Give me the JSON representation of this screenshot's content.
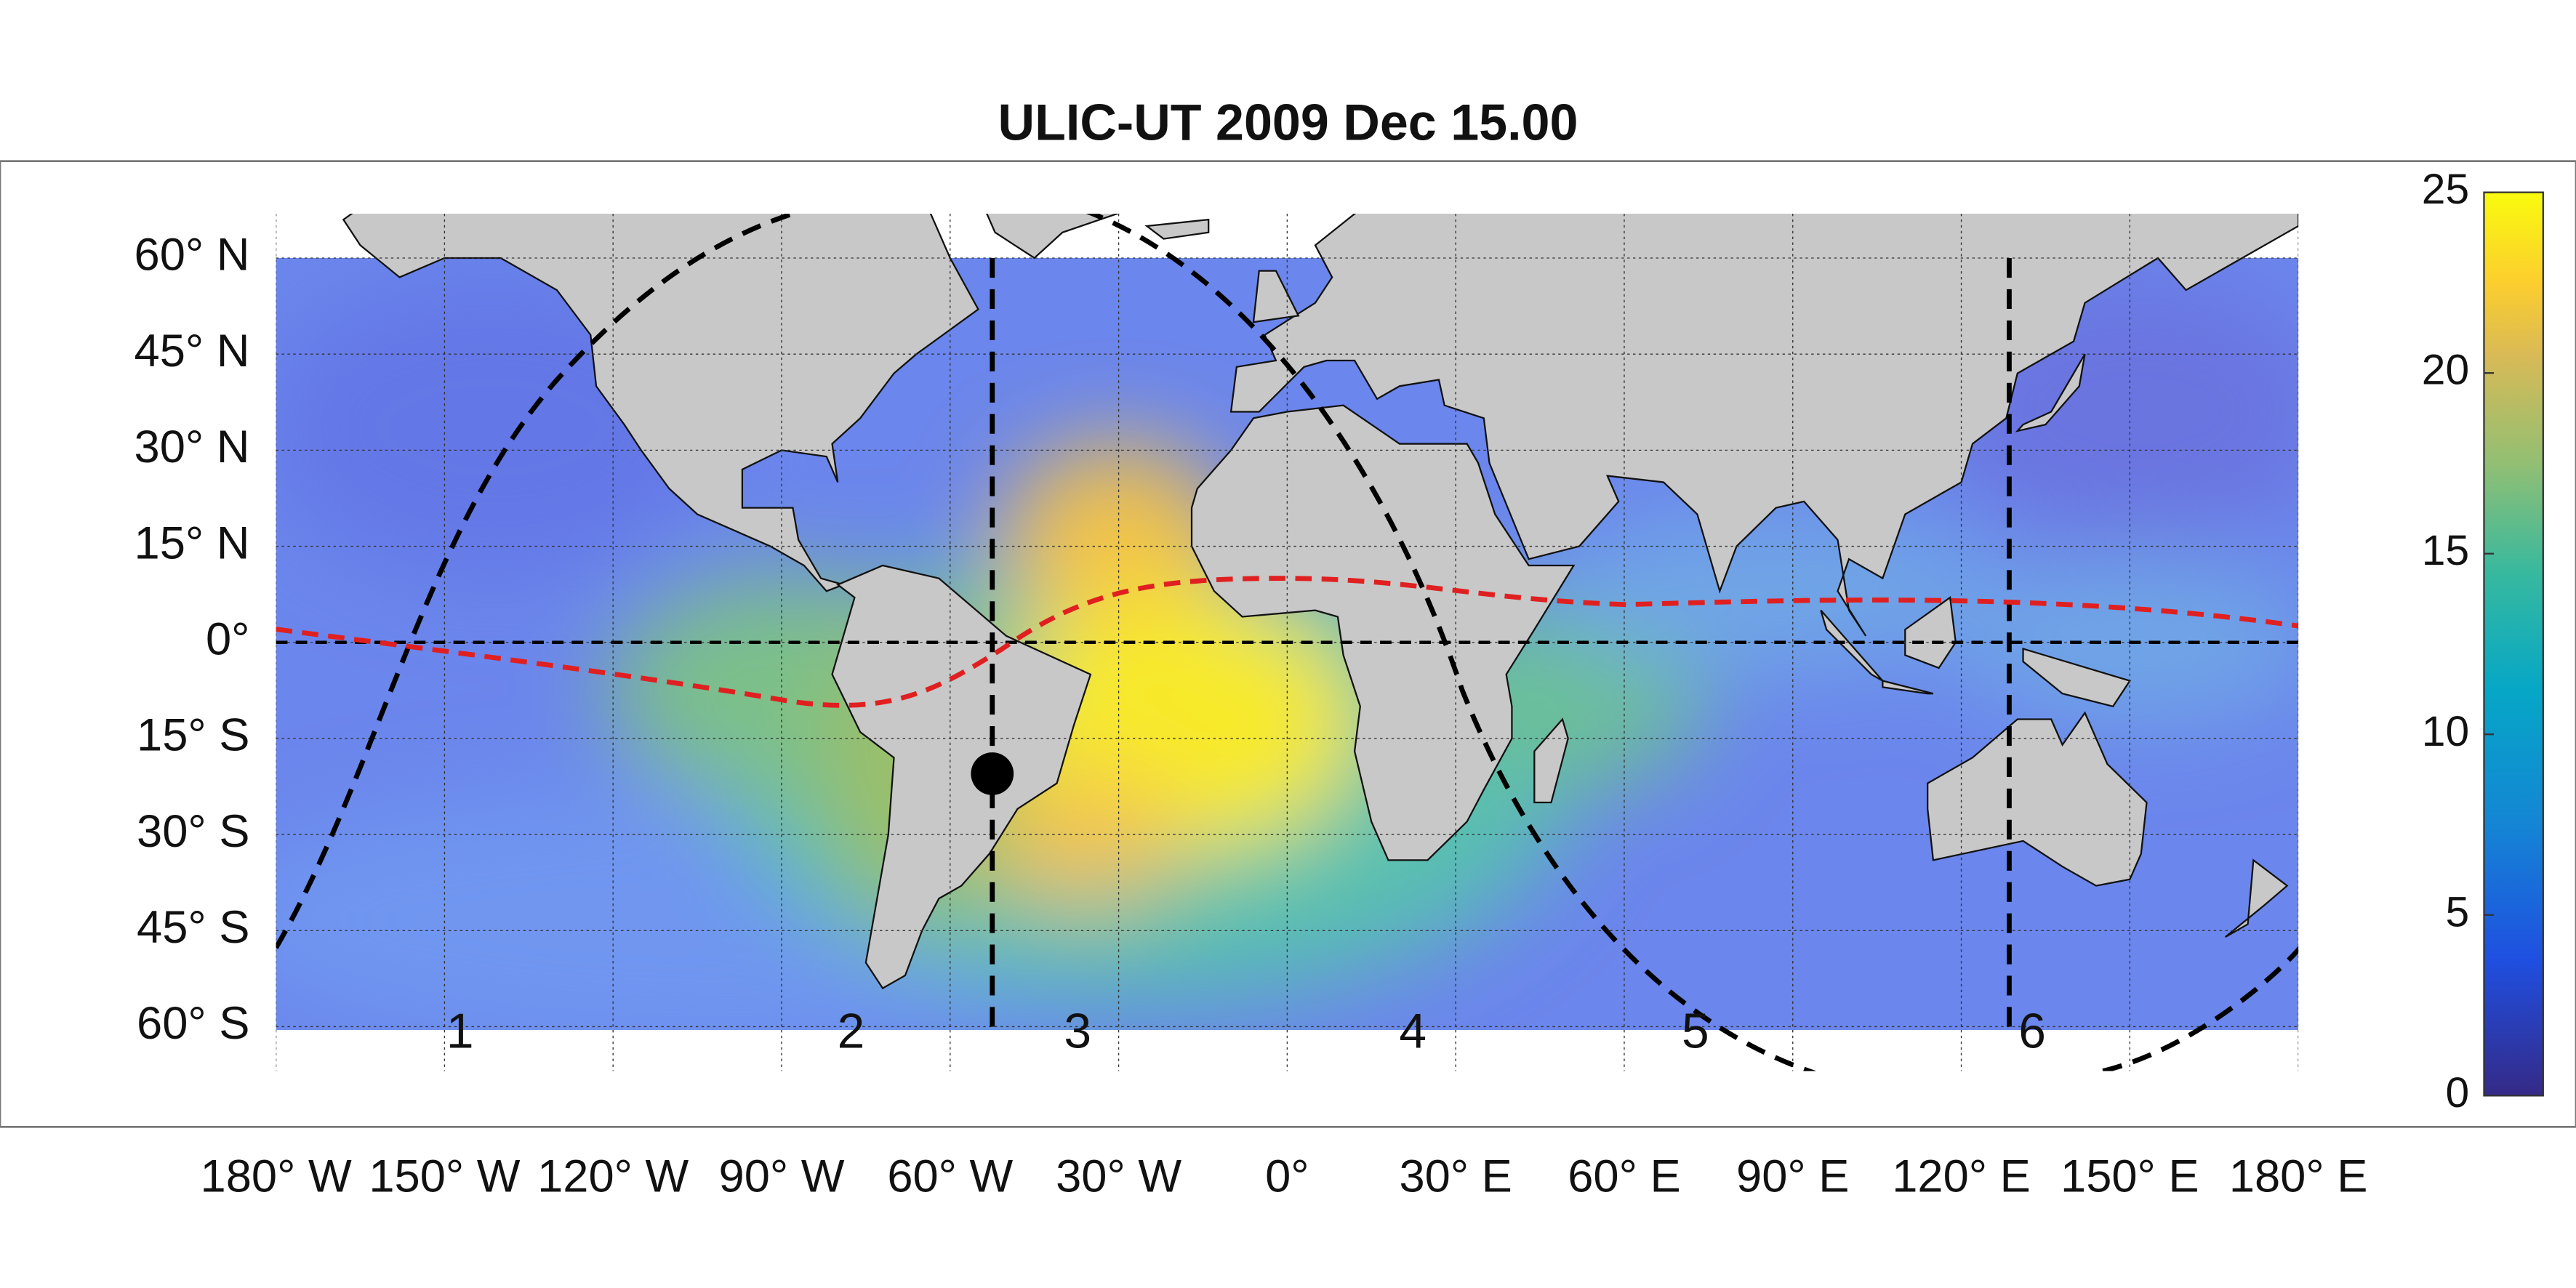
{
  "title": "ULIC-UT 2009 Dec 15.00",
  "map": {
    "lat_ticks": [
      {
        "value": 60,
        "label": "60° N"
      },
      {
        "value": 45,
        "label": "45° N"
      },
      {
        "value": 30,
        "label": "30° N"
      },
      {
        "value": 15,
        "label": "15° N"
      },
      {
        "value": 0,
        "label": "0°"
      },
      {
        "value": -15,
        "label": "15° S"
      },
      {
        "value": -30,
        "label": "30° S"
      },
      {
        "value": -45,
        "label": "45° S"
      },
      {
        "value": -60,
        "label": "60° S"
      }
    ],
    "lon_ticks": [
      {
        "value": -180,
        "label": "180° W"
      },
      {
        "value": -150,
        "label": "150° W"
      },
      {
        "value": -120,
        "label": "120° W"
      },
      {
        "value": -90,
        "label": "90° W"
      },
      {
        "value": -60,
        "label": "60° W"
      },
      {
        "value": -30,
        "label": "30° W"
      },
      {
        "value": 0,
        "label": "0°"
      },
      {
        "value": 30,
        "label": "30° E"
      },
      {
        "value": 60,
        "label": "60° E"
      },
      {
        "value": 90,
        "label": "90° E"
      },
      {
        "value": 120,
        "label": "120° E"
      },
      {
        "value": 150,
        "label": "150° E"
      },
      {
        "value": 180,
        "label": "180° E"
      }
    ],
    "region_labels": [
      "1",
      "2",
      "3",
      "4",
      "5",
      "6"
    ]
  },
  "colorbar": {
    "ylim": [
      0,
      25
    ],
    "yticks": [
      0,
      5,
      10,
      15,
      20,
      25
    ]
  }
}
